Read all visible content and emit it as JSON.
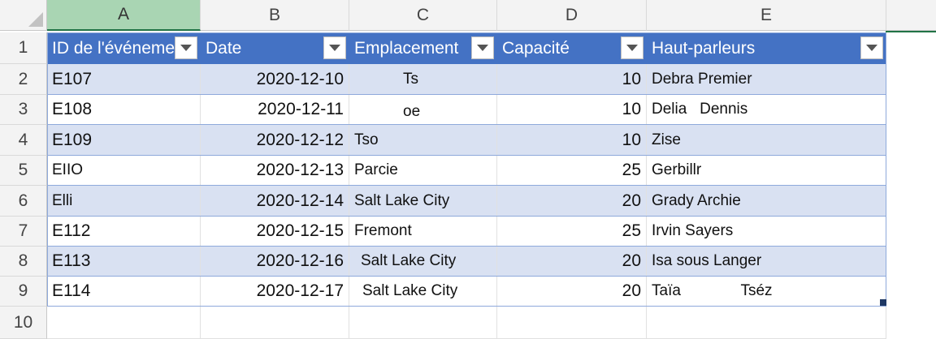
{
  "columns": [
    "A",
    "B",
    "C",
    "D",
    "E"
  ],
  "rows": [
    "1",
    "2",
    "3",
    "4",
    "5",
    "6",
    "7",
    "8",
    "9",
    "10"
  ],
  "table": {
    "headers": [
      "ID de l'événement",
      "Date",
      "Emplacement",
      "Capacité",
      "Haut-parleurs"
    ],
    "data": [
      [
        "E107",
        "2020-12-10",
        "Ts",
        "10",
        "Debra Premier"
      ],
      [
        "E108",
        "2020-12-11",
        "oe",
        "10",
        "Delia   Dennis"
      ],
      [
        "E109",
        "2020-12-12",
        "Tso",
        "10",
        "Zise"
      ],
      [
        "EIIO",
        "2020-12-13",
        "Parcie",
        "25",
        "Gerbillr"
      ],
      [
        "Elli",
        "2020-12-14",
        "Salt Lake City",
        "20",
        "Grady Archie"
      ],
      [
        "E112",
        "2020-12-15",
        "Fremont",
        "25",
        "Irvin Sayers"
      ],
      [
        "E113",
        "2020-12-16",
        "Salt Lake City",
        "20",
        "Isa sous Langer"
      ],
      [
        "E114",
        "2020-12-17",
        "Salt Lake City",
        "20",
        "Taïa              Tséz"
      ]
    ]
  },
  "colors": {
    "header_fill": "#4472c4",
    "band_fill": "#d9e1f2",
    "selected_column": "#a9d5b3",
    "accent": "#217346"
  },
  "icons": {
    "filter": "filter-dropdown-icon",
    "corner": "select-all-icon",
    "resize": "table-resize-handle-icon"
  }
}
